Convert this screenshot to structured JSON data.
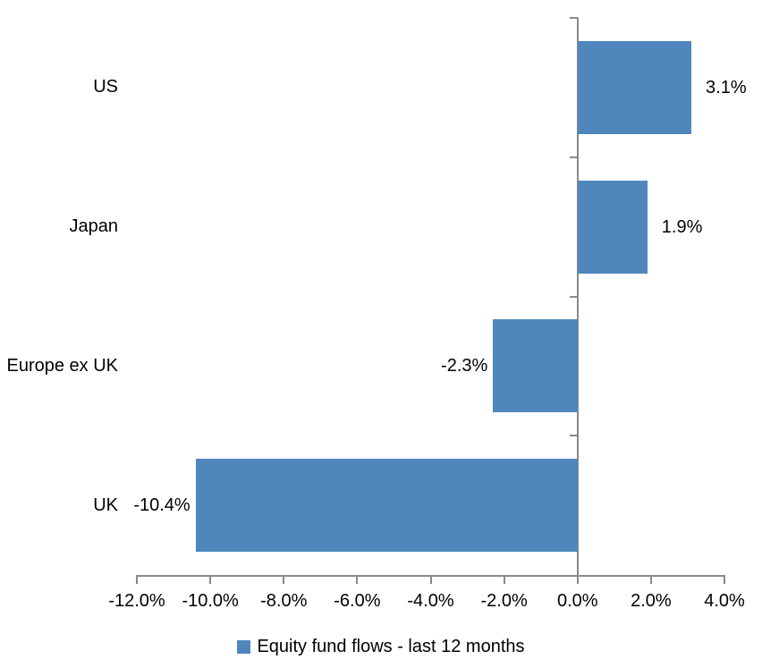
{
  "chart_data": {
    "type": "bar",
    "orientation": "horizontal",
    "title": "",
    "categories": [
      "US",
      "Japan",
      "Europe ex UK",
      "UK"
    ],
    "values": [
      3.1,
      1.9,
      -2.3,
      -10.4
    ],
    "value_labels": [
      "3.1%",
      "1.9%",
      "-2.3%",
      "-10.4%"
    ],
    "series": [
      {
        "name": "Equity fund flows - last 12 months",
        "values": [
          3.1,
          1.9,
          -2.3,
          -10.4
        ]
      }
    ],
    "legend_label": "Equity fund flows - last 12 months",
    "legend_position": "bottom",
    "xlim": [
      -12,
      4
    ],
    "x_tick_values": [
      -12,
      -10,
      -8,
      -6,
      -4,
      -2,
      0,
      2,
      4
    ],
    "x_tick_labels": [
      "-12.0%",
      "-10.0%",
      "-8.0%",
      "-6.0%",
      "-4.0%",
      "-2.0%",
      "0.0%",
      "2.0%",
      "4.0%"
    ],
    "grid": false,
    "colors": {
      "bar": "#4F86BC",
      "axis": "#8A8A8A",
      "text": "#000000",
      "background": "#FFFFFF"
    }
  }
}
